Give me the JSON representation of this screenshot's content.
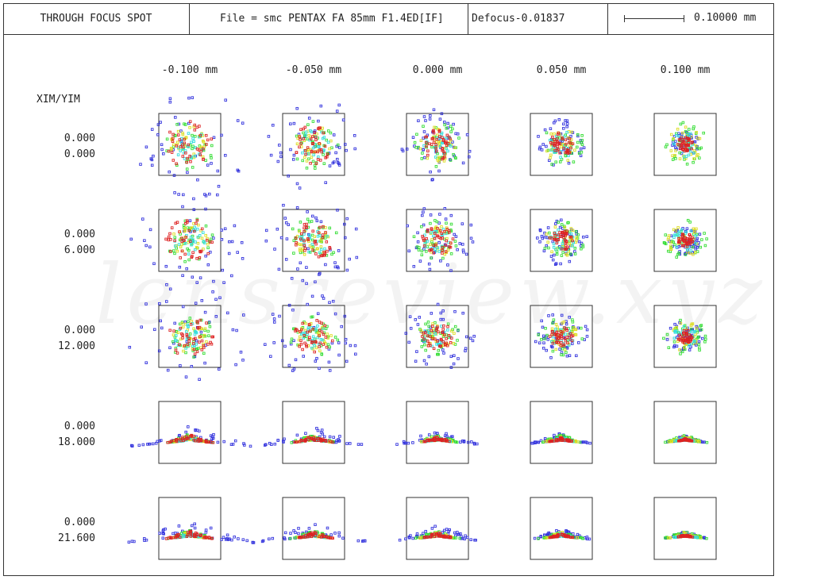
{
  "header": {
    "title": "THROUGH FOCUS SPOT",
    "file": "File = smc PENTAX FA 85mm F1.4ED[IF]",
    "defocus": "Defocus-0.01837",
    "scale": "0.10000 mm"
  },
  "field_label": "XIM/YIM",
  "chart_data": {
    "type": "scatter",
    "title": "THROUGH FOCUS SPOT",
    "focus_positions": [
      "-0.100 mm",
      "-0.050 mm",
      "0.000 mm",
      "0.050 mm",
      "0.100 mm"
    ],
    "focus_values_mm": [
      -0.1,
      -0.05,
      0.0,
      0.05,
      0.1
    ],
    "fields": [
      {
        "xim": "0.000",
        "yim": "0.000"
      },
      {
        "xim": "0.000",
        "yim": "6.000"
      },
      {
        "xim": "0.000",
        "yim": "12.000"
      },
      {
        "xim": "0.000",
        "yim": "18.000"
      },
      {
        "xim": "0.000",
        "yim": "21.600"
      }
    ],
    "scale_bar_mm": 0.1,
    "wavelength_colors": [
      "#3333dd",
      "#dd2222",
      "#33dddd",
      "#dddd22",
      "#33dd33"
    ],
    "grid": false
  }
}
